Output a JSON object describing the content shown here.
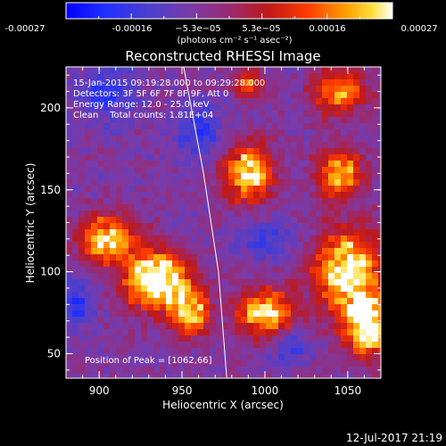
{
  "chart_data": {
    "type": "heatmap",
    "title": "Reconstructed RHESSI Image",
    "xlabel": "Heliocentric X (arcsec)",
    "ylabel": "Heliocentric Y (arcsec)",
    "xlim": [
      880,
      1070
    ],
    "ylim": [
      35,
      225
    ],
    "xticks": [
      900,
      950,
      1000,
      1050
    ],
    "yticks": [
      50,
      100,
      150,
      200
    ],
    "colorbar": {
      "ticks": [
        "-0.00027",
        "-0.00016",
        "−5.3e−05",
        "5.3e−05",
        "0.00016",
        "0.00027"
      ],
      "unit_text": "(photons cm⁻² s⁻¹ asec⁻²)",
      "range": [
        -0.00027,
        0.00027
      ]
    },
    "info_lines": [
      "15-Jan-2015 09:19:28.000 to 09:29:28.000",
      "Detectors: 3F 5F 6F 7F 8F 9F, Att 0",
      "Energy Range: 12.0 - 25.0 keV",
      "Clean    Total counts: 1.81E+04"
    ],
    "peak_text": "Position of Peak = [1062,66]",
    "peak_position": [
      1062,
      66
    ],
    "limb_curve": {
      "x": [
        951,
        963,
        972,
        977
      ],
      "y": [
        225,
        160,
        100,
        35
      ]
    },
    "hot_regions": [
      {
        "x": 905,
        "y": 120,
        "sx": 12,
        "sy": 10,
        "amp": 1.0
      },
      {
        "x": 935,
        "y": 95,
        "sx": 14,
        "sy": 12,
        "amp": 1.25
      },
      {
        "x": 955,
        "y": 75,
        "sx": 8,
        "sy": 10,
        "amp": 0.9
      },
      {
        "x": 990,
        "y": 160,
        "sx": 10,
        "sy": 12,
        "amp": 1.0
      },
      {
        "x": 1000,
        "y": 75,
        "sx": 12,
        "sy": 10,
        "amp": 1.0
      },
      {
        "x": 1050,
        "y": 100,
        "sx": 14,
        "sy": 18,
        "amp": 1.1
      },
      {
        "x": 1062,
        "y": 66,
        "sx": 9,
        "sy": 12,
        "amp": 1.2
      },
      {
        "x": 1045,
        "y": 160,
        "sx": 10,
        "sy": 10,
        "amp": 0.8
      },
      {
        "x": 1045,
        "y": 210,
        "sx": 12,
        "sy": 10,
        "amp": 0.7
      },
      {
        "x": 990,
        "y": 215,
        "sx": 6,
        "sy": 6,
        "amp": 0.7
      }
    ],
    "cold_regions": [
      {
        "x": 905,
        "y": 210,
        "sx": 12,
        "sy": 12,
        "amp": 0.6
      },
      {
        "x": 960,
        "y": 185,
        "sx": 10,
        "sy": 12,
        "amp": 0.55
      },
      {
        "x": 885,
        "y": 80,
        "sx": 8,
        "sy": 10,
        "amp": 0.6
      },
      {
        "x": 1000,
        "y": 120,
        "sx": 12,
        "sy": 8,
        "amp": 0.5
      },
      {
        "x": 1015,
        "y": 55,
        "sx": 8,
        "sy": 8,
        "amp": 0.5
      }
    ]
  },
  "footer": {
    "timestamp": "12-Jul-2017 21:19"
  }
}
